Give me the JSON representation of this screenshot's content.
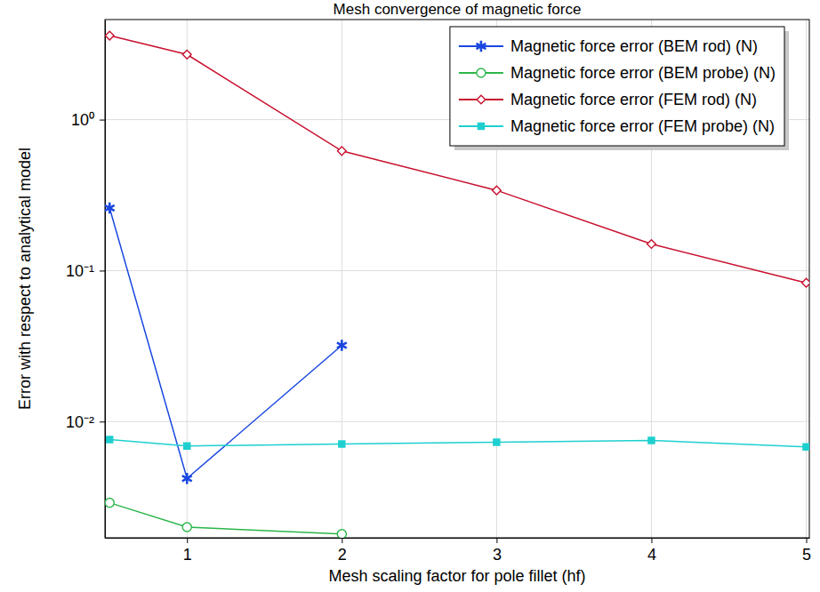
{
  "chart_data": {
    "type": "line",
    "title": "Mesh convergence of magnetic force",
    "x_label": "Mesh scaling factor for pole fillet (hf)",
    "y_label": "Error with respect to analytical model",
    "x": [
      0.5,
      1,
      2,
      3,
      4,
      5
    ],
    "series": [
      {
        "name": "Magnetic force error (BEM rod) (N)",
        "color": "#1a47e0",
        "marker": "asterisk",
        "line_style": "solid",
        "values": [
          0.26,
          0.0042,
          0.032,
          null,
          null,
          null
        ]
      },
      {
        "name": "Magnetic force error (BEM probe) (N)",
        "color": "#2bb64a",
        "marker": "circle-open",
        "line_style": "solid",
        "values": [
          0.0029,
          0.002,
          0.0018,
          null,
          null,
          null
        ]
      },
      {
        "name": "Magnetic force error (FEM rod) (N)",
        "color": "#c8102e",
        "marker": "diamond-open",
        "line_style": "solid",
        "values": [
          3.6,
          2.7,
          0.62,
          0.34,
          0.15,
          0.083
        ]
      },
      {
        "name": "Magnetic force error (FEM probe) (N)",
        "color": "#1fcfcf",
        "marker": "square",
        "line_style": "solid",
        "values": [
          0.0076,
          0.0069,
          0.0071,
          0.0073,
          0.0075,
          0.0068
        ]
      }
    ],
    "xlim": [
      0.47,
      5.02
    ],
    "ylim": [
      0.0017,
      4.6
    ],
    "xticks": [
      1,
      2,
      3,
      4,
      5
    ],
    "yticks": [
      {
        "value": 0.01,
        "label": "10⁻²"
      },
      {
        "value": 0.1,
        "label": "10⁻¹"
      },
      {
        "value": 1,
        "label": "10⁰"
      }
    ],
    "log": "y",
    "grid": true,
    "legend": "upper right"
  }
}
